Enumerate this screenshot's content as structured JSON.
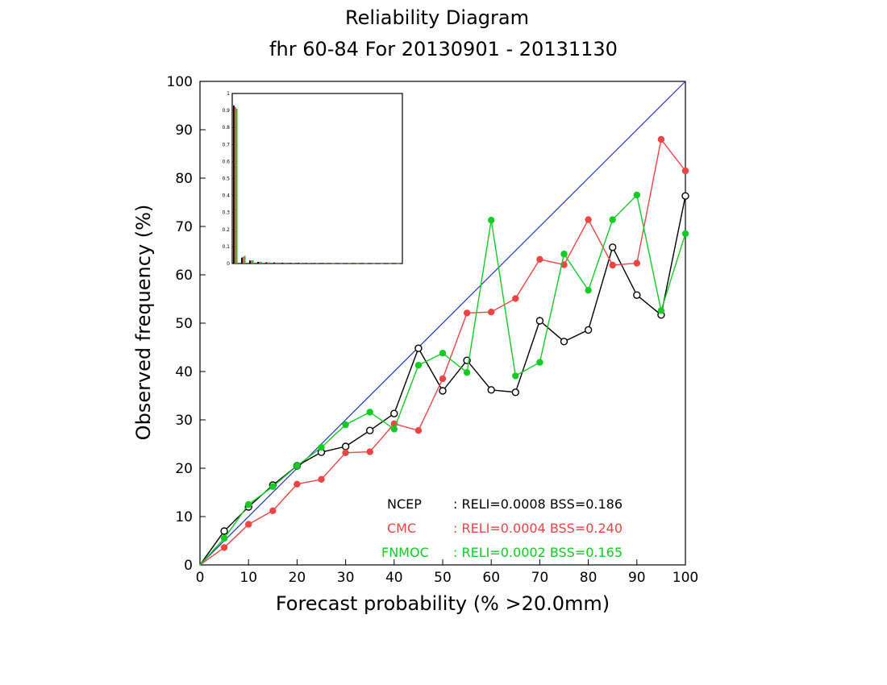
{
  "chart_data": {
    "type": "line",
    "title": "Reliability Diagram",
    "subtitle": "fhr 60-84 For 20130901 - 20131130",
    "xlabel": "Forecast probability (% >20.0mm)",
    "ylabel": "Observed frequency (%)",
    "xlim": [
      0,
      100
    ],
    "ylim": [
      0,
      100
    ],
    "xticks": [
      "0",
      "10",
      "20",
      "30",
      "40",
      "50",
      "60",
      "70",
      "80",
      "90",
      "100"
    ],
    "yticks": [
      "0",
      "10",
      "20",
      "30",
      "40",
      "50",
      "60",
      "70",
      "80",
      "90",
      "100"
    ],
    "grid": false,
    "diagonal_color": "#2233bb",
    "series": [
      {
        "name": "NCEP",
        "stats": ": RELI=0.0008 BSS=0.186",
        "color": "#000000",
        "marker": "open-circle",
        "x": [
          0,
          5,
          10,
          15,
          20,
          25,
          30,
          35,
          40,
          45,
          50,
          55,
          60,
          65,
          70,
          75,
          80,
          85,
          90,
          95,
          100
        ],
        "y": [
          0,
          7.0,
          12.0,
          16.5,
          20.5,
          23.3,
          24.5,
          27.8,
          31.3,
          44.8,
          36.0,
          42.3,
          36.2,
          35.7,
          50.5,
          46.2,
          48.6,
          65.7,
          55.8,
          51.7,
          76.3
        ]
      },
      {
        "name": "CMC",
        "stats": ": RELI=0.0004 BSS=0.240",
        "color": "#ee4444",
        "marker": "filled-circle",
        "x": [
          0,
          5,
          10,
          15,
          20,
          25,
          30,
          35,
          40,
          45,
          50,
          55,
          60,
          65,
          70,
          75,
          80,
          85,
          90,
          95,
          100
        ],
        "y": [
          0,
          3.6,
          8.4,
          11.2,
          16.7,
          17.7,
          23.2,
          23.4,
          29.2,
          27.8,
          38.5,
          52.1,
          52.3,
          55.1,
          63.2,
          62.1,
          71.4,
          62.0,
          62.4,
          88.0,
          81.5
        ]
      },
      {
        "name": "FNMOC",
        "stats": ": RELI=0.0002 BSS=0.165",
        "color": "#11cc22",
        "marker": "filled-circle",
        "x": [
          0,
          5,
          10,
          15,
          20,
          25,
          30,
          35,
          40,
          45,
          50,
          55,
          60,
          65,
          70,
          75,
          80,
          85,
          90,
          95,
          100
        ],
        "y": [
          0,
          5.5,
          12.5,
          16.2,
          20.5,
          24.3,
          29.0,
          31.6,
          28.1,
          41.3,
          43.8,
          39.8,
          71.3,
          39.1,
          41.9,
          64.3,
          56.8,
          71.4,
          76.5,
          52.6,
          68.5
        ]
      }
    ],
    "inset": {
      "type": "bar",
      "ylim": [
        0,
        1
      ],
      "yticks": [
        "0",
        "0.1",
        "0.2",
        "0.3",
        "0.4",
        "0.5",
        "0.6",
        "0.7",
        "0.8",
        "0.9",
        "1"
      ],
      "series": [
        {
          "name": "NCEP",
          "color": "#000000",
          "values": [
            0.93,
            0.035,
            0.018,
            0.01,
            0.007,
            0.006,
            0.005,
            0.004,
            0.004,
            0.003,
            0.003,
            0.003,
            0.002,
            0.002,
            0.002,
            0.002,
            0.002,
            0.001,
            0.001,
            0.001,
            0.001
          ]
        },
        {
          "name": "CMC",
          "color": "#ee4444",
          "values": [
            0.92,
            0.04,
            0.017,
            0.01,
            0.007,
            0.005,
            0.005,
            0.004,
            0.004,
            0.003,
            0.003,
            0.003,
            0.002,
            0.002,
            0.002,
            0.002,
            0.002,
            0.001,
            0.001,
            0.001,
            0.001
          ]
        },
        {
          "name": "FNMOC",
          "color": "#11cc22",
          "values": [
            0.91,
            0.045,
            0.02,
            0.01,
            0.007,
            0.006,
            0.005,
            0.004,
            0.004,
            0.003,
            0.003,
            0.003,
            0.002,
            0.002,
            0.002,
            0.002,
            0.002,
            0.001,
            0.001,
            0.001,
            0.001
          ]
        }
      ]
    }
  }
}
